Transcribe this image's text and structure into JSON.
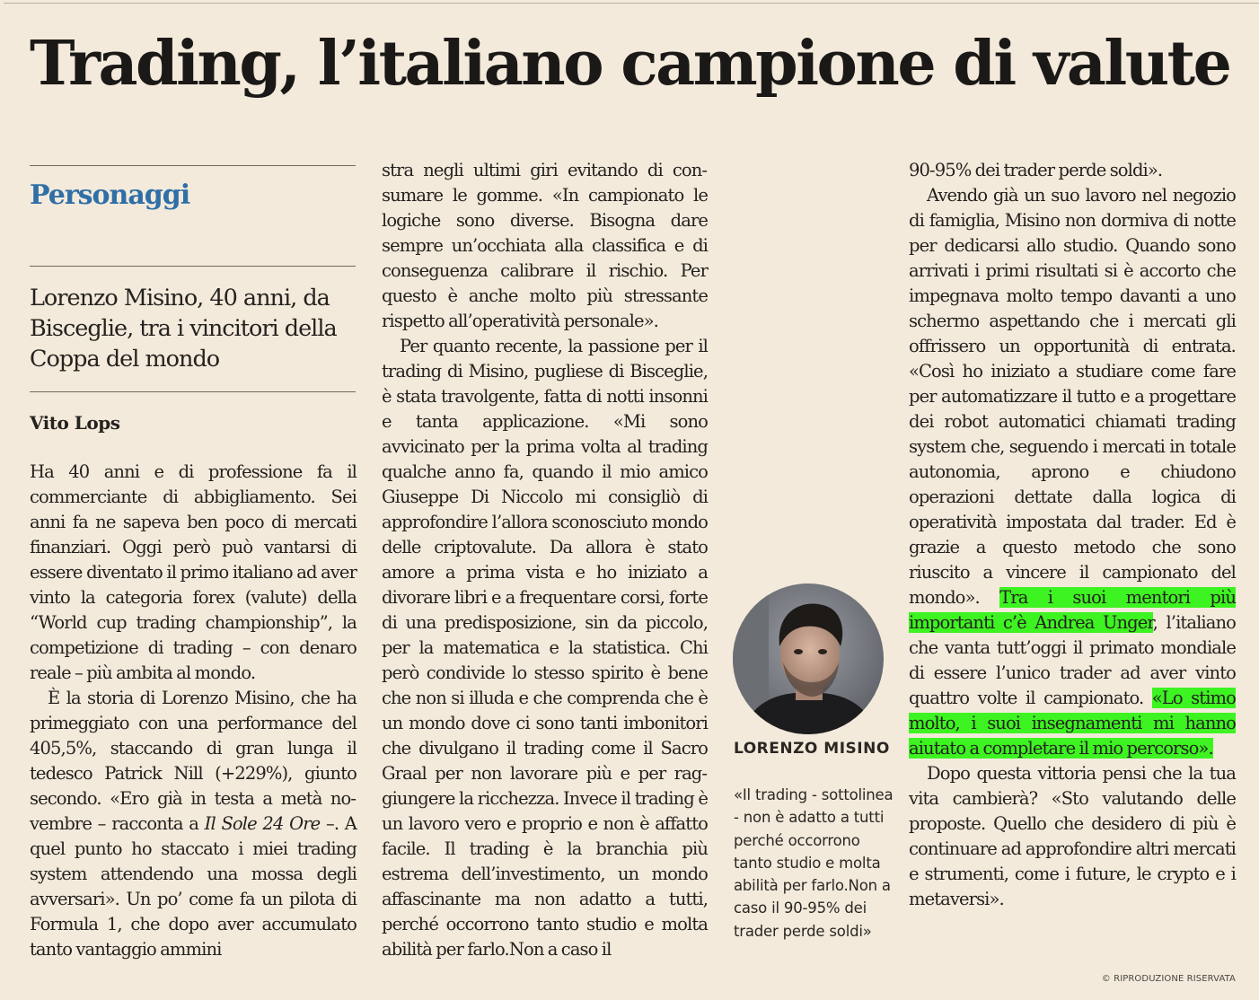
{
  "headline": "Trading, l’italiano campione di valute",
  "section": "Personaggi",
  "summary": "Lorenzo Misino, 40 anni, da Bisceglie, tra i vincitori della Coppa del mondo",
  "author": "Vito Lops",
  "col1": {
    "p1": "Ha 40 anni e di professione fa il commerciante di abbigliamento. Sei anni fa ne sapeva ben poco di mercati finanziari. Oggi però può vantarsi di essere diventato il primo italiano ad aver vinto la categoria forex (valute) della “World cup tra­ding championship”, la competi­zione di trading – con denaro reale – più ambita al mondo.",
    "p2_a": "È la storia di Lorenzo Misino, che ha primeggiato con una performance del 405,5%, staccando di gran lunga il tedesco Patrick Nill (+229%), giunto secondo. «Ero già in testa a metà no­vembre – racconta a ",
    "p2_em": "Il Sole 24 Ore",
    "p2_b": " –. A quel punto ho staccato i miei tra­ding system attendendo una mossa degli avversari». Un po’ come fa un pilota di Formula 1, che dopo aver ac­cumulato tanto vantaggio ammini­"
  },
  "col2": {
    "p1": "stra negli ultimi giri evitando di con­sumare le gomme. «In campionato le logiche sono diverse. Bisogna dare sempre un’occhiata alla classifica e di conseguenza calibrare il rischio. Per questo è anche molto più stressante rispetto all’operatività personale».",
    "p2": "Per quanto recente, la passione per il trading di Misino, pugliese di Bisceglie, è stata travolgente, fatta di notti insonni e tanta applicazione. «Mi sono avvicinato per la prima vol­ta al trading qualche anno fa, quando il mio amico Giuseppe Di Niccolo mi consigliò di approfondire l’allora sconosciuto mondo delle criptovalu­te. Da allora è stato amore a prima vista e ho iniziato a divorare libri e a frequentare corsi, forte di una predi­sposizione, sin da piccolo, per la ma­tematica e la statistica. Chi però con­divide lo stesso spirito è bene che non si illuda e che comprenda che è un mondo dove ci sono tanti imbonitori che divulgano il trading come il Sacro Graal per non lavorare più e per rag­giungere la ricchezza. Invece il tra­ding è un lavoro vero e proprio e non è affatto facile. Il trading è la branchia più estrema dell’investimento, un mondo affascinante ma non adatto a tutti, perché occorrono tanto studio e molta abilità per farlo.Non a caso il"
  },
  "caption": {
    "name": "LORENZO MISINO",
    "text": "«Il trading - sottolinea - non è adatto a tutti perché occorrono tanto studio e molta abilità per farlo.Non a caso il 90-95% dei trader perde soldi»"
  },
  "col3": {
    "p1": "90-95% dei trader perde soldi».",
    "p2_a": "Avendo già un suo lavoro nel ne­gozio di famiglia, Misino non dor­miva di notte per dedicarsi allo stu­dio. Quando sono arrivati i primi ri­sultati si è accorto che impegnava molto tempo davanti a uno schermo aspettando che i mercati gli offrisse­ro un opportunità di entrata. «Così ho iniziato a studiare come fare per automatizzare il tutto e a progettare dei robot automatici chiamati tra­ding system che, seguendo i mercati in totale autonomia, aprono e chiu­dono operazioni dettate dalla logica di operatività impostata dal trader. Ed è grazie a questo metodo che so­no riuscito a vincere il campionato del mondo». ",
    "p2_hl1": "Tra i suoi mentori più importanti c’è Andrea Unger",
    "p2_b": ", l’ita­liano che vanta tutt’oggi il primato mondiale di essere l’unico trader ad aver vinto quattro volte il campiona­to. ",
    "p2_hl2": "«Lo stimo molto, i suoi insegna­menti mi hanno aiutato a completa­re il mio percorso».",
    "p3": "Dopo questa vittoria pensi che la tua vita cambierà? «Sto valutando delle proposte. Quello che desidero di più è continuare ad approfondire al­tri mercati e strumenti, come i future, le crypto e i metaversi»."
  },
  "copyright": "© RIPRODUZIONE RISERVATA",
  "colors": {
    "section": "#2f6fa7",
    "highlight": "#3df321",
    "paper": "#f3eadb"
  }
}
